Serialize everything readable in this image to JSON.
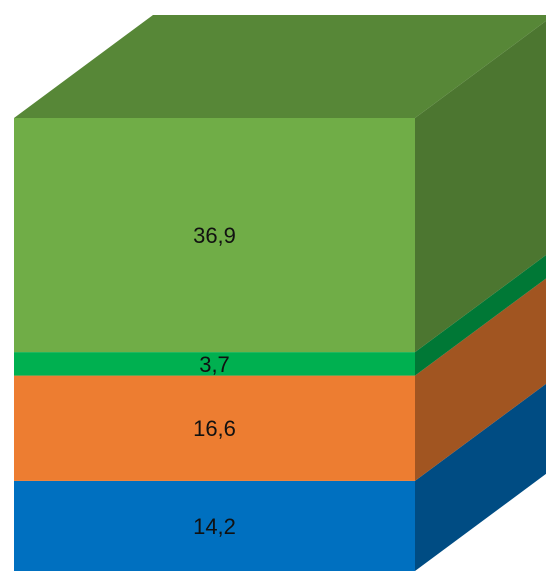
{
  "chart_data": {
    "type": "bar",
    "style": "3d-stacked-cube",
    "title": "",
    "xlabel": "",
    "ylabel": "",
    "legend": "none",
    "grid": false,
    "categories": [
      ""
    ],
    "series": [
      {
        "values": [
          14.2
        ],
        "label": "14,2",
        "color": "#0070C0"
      },
      {
        "values": [
          16.6
        ],
        "label": "16,6",
        "color": "#ED7D31"
      },
      {
        "values": [
          3.7
        ],
        "label": "3,7",
        "color": "#00B050"
      },
      {
        "values": [
          36.9
        ],
        "label": "36,9",
        "color": "#70AD47"
      }
    ]
  }
}
